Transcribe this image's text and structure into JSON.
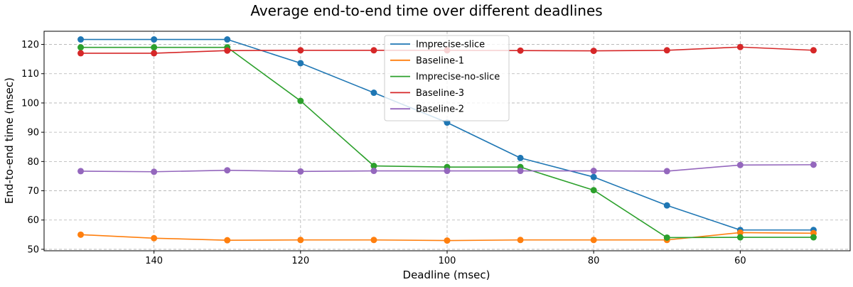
{
  "chart_data": {
    "type": "line",
    "title": "Average end-to-end time over different deadlines",
    "xlabel": "Deadline (msec)",
    "ylabel": "End-to-end time (msec)",
    "x": [
      150,
      140,
      130,
      120,
      110,
      100,
      90,
      80,
      70,
      60,
      50
    ],
    "xlim": [
      155,
      45
    ],
    "ylim": [
      49.5,
      124.5
    ],
    "x_reversed": true,
    "xticks": [
      140,
      120,
      100,
      80,
      60
    ],
    "yticks": [
      50,
      60,
      70,
      80,
      90,
      100,
      110,
      120
    ],
    "grid": true,
    "legend_position": "upper-center",
    "series": [
      {
        "name": "Imprecise-slice",
        "color": "#1f77b4",
        "values": [
          121.7,
          121.7,
          121.7,
          113.6,
          103.5,
          93.3,
          81.2,
          74.7,
          65.0,
          56.6,
          56.6
        ]
      },
      {
        "name": "Baseline-1",
        "color": "#ff7f0e",
        "values": [
          55.0,
          53.8,
          53.1,
          53.2,
          53.2,
          53.0,
          53.2,
          53.2,
          53.2,
          55.7,
          55.5
        ]
      },
      {
        "name": "Imprecise-no-slice",
        "color": "#2ca02c",
        "values": [
          119.0,
          119.0,
          119.0,
          100.7,
          78.5,
          78.1,
          78.1,
          70.2,
          54.0,
          54.1,
          54.1
        ]
      },
      {
        "name": "Baseline-3",
        "color": "#d62728",
        "values": [
          117.0,
          117.0,
          117.9,
          118.0,
          118.0,
          118.0,
          117.9,
          117.8,
          118.0,
          119.1,
          118.0
        ]
      },
      {
        "name": "Baseline-2",
        "color": "#9467bd",
        "values": [
          76.7,
          76.5,
          77.0,
          76.6,
          76.8,
          76.8,
          76.8,
          76.8,
          76.7,
          78.8,
          78.9
        ]
      }
    ]
  }
}
